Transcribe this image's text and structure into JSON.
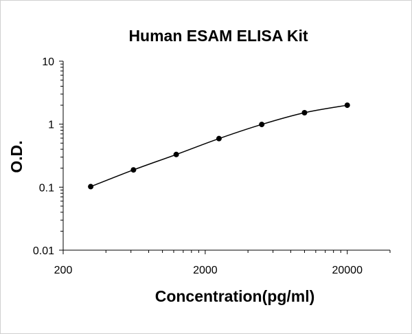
{
  "chart_data": {
    "type": "line",
    "title": "Human ESAM ELISA Kit",
    "xlabel": "Concentration(pg/ml)",
    "ylabel": "O.D.",
    "x_scale": "log",
    "y_scale": "log",
    "xlim": [
      200,
      40000
    ],
    "ylim": [
      0.01,
      10
    ],
    "x_tick_labels": [
      "200",
      "2000",
      "20000"
    ],
    "y_tick_labels": [
      "10",
      "1",
      "0.1",
      "0.01"
    ],
    "grid": false,
    "series": [
      {
        "x": [
          312.5,
          625,
          1250,
          2500,
          5000,
          10000,
          20000
        ],
        "y": [
          0.102,
          0.188,
          0.33,
          0.59,
          0.99,
          1.52,
          2.0
        ]
      }
    ]
  }
}
